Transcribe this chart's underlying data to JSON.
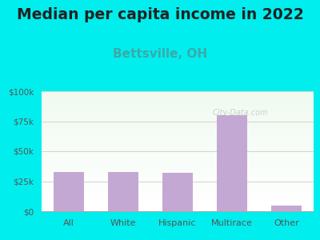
{
  "title": "Median per capita income in 2022",
  "subtitle": "Bettsville, OH",
  "categories": [
    "All",
    "White",
    "Hispanic",
    "Multirace",
    "Other"
  ],
  "values": [
    33000,
    33000,
    32000,
    80000,
    5000
  ],
  "bar_color": "#c4a8d4",
  "title_fontsize": 13.5,
  "subtitle_fontsize": 11,
  "title_color": "#222222",
  "subtitle_color": "#3aaaaa",
  "background_outer": "#00eeee",
  "ylim": [
    0,
    100000
  ],
  "yticks": [
    0,
    25000,
    50000,
    75000,
    100000
  ],
  "ytick_labels": [
    "$0",
    "$25k",
    "$50k",
    "$75k",
    "$100k"
  ],
  "watermark": "City-Data.com"
}
